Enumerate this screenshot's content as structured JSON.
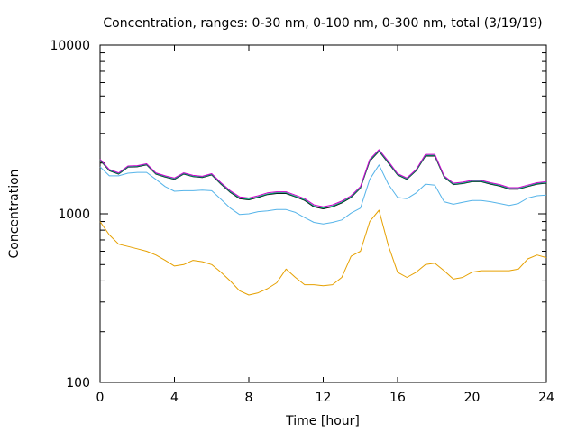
{
  "chart_data": {
    "type": "line",
    "title": "Concentration, ranges: 0-30 nm, 0-100 nm, 0-300 nm, total (3/19/19)",
    "xlabel": "Time [hour]",
    "ylabel": "Concentration",
    "xlim": [
      0,
      24
    ],
    "ylim": [
      100,
      10000
    ],
    "yscale": "log",
    "grid": false,
    "legend": "none",
    "x_ticks": [
      0,
      4,
      8,
      12,
      16,
      20,
      24
    ],
    "x_tick_labels": [
      "0",
      "4",
      "8",
      "12",
      "16",
      "20",
      "24"
    ],
    "y_ticks": [
      100,
      1000,
      10000
    ],
    "y_tick_labels": [
      "100",
      "1000",
      "10000"
    ],
    "x": [
      0,
      0.5,
      1,
      1.5,
      2,
      2.5,
      3,
      3.5,
      4,
      4.5,
      5,
      5.5,
      6,
      6.5,
      7,
      7.5,
      8,
      8.5,
      9,
      9.5,
      10,
      10.5,
      11,
      11.5,
      12,
      12.5,
      13,
      13.5,
      14,
      14.5,
      15,
      15.5,
      16,
      16.5,
      17,
      17.5,
      18,
      18.5,
      19,
      19.5,
      20,
      20.5,
      21,
      21.5,
      22,
      22.5,
      23,
      23.5,
      24
    ],
    "series": [
      {
        "color": "#e6a000",
        "values": [
          900,
          750,
          660,
          640,
          620,
          600,
          570,
          530,
          490,
          500,
          530,
          520,
          500,
          450,
          400,
          350,
          330,
          340,
          360,
          390,
          470,
          420,
          380,
          380,
          375,
          380,
          420,
          560,
          600,
          900,
          1050,
          650,
          450,
          420,
          450,
          500,
          510,
          460,
          410,
          420,
          450,
          460,
          460,
          460,
          460,
          470,
          540,
          570,
          550
        ]
      },
      {
        "color": "#56b4e9",
        "values": [
          1900,
          1680,
          1680,
          1740,
          1760,
          1760,
          1600,
          1450,
          1360,
          1370,
          1370,
          1380,
          1370,
          1220,
          1080,
          990,
          1000,
          1030,
          1040,
          1060,
          1060,
          1020,
          950,
          890,
          870,
          890,
          920,
          1010,
          1080,
          1600,
          1950,
          1500,
          1250,
          1230,
          1330,
          1500,
          1480,
          1180,
          1140,
          1170,
          1200,
          1200,
          1180,
          1150,
          1120,
          1150,
          1240,
          1280,
          1290
        ]
      },
      {
        "color": "#000000",
        "values": [
          2080,
          1800,
          1720,
          1890,
          1900,
          1950,
          1720,
          1650,
          1600,
          1720,
          1660,
          1640,
          1700,
          1500,
          1340,
          1230,
          1210,
          1250,
          1300,
          1320,
          1320,
          1260,
          1200,
          1100,
          1070,
          1100,
          1160,
          1250,
          1420,
          2050,
          2350,
          2000,
          1700,
          1600,
          1800,
          2200,
          2200,
          1650,
          1490,
          1510,
          1550,
          1550,
          1500,
          1460,
          1400,
          1400,
          1450,
          1500,
          1520
        ]
      },
      {
        "color": "#009e73",
        "values": [
          2090,
          1810,
          1730,
          1900,
          1910,
          1960,
          1730,
          1660,
          1610,
          1730,
          1670,
          1650,
          1710,
          1510,
          1350,
          1240,
          1220,
          1260,
          1310,
          1330,
          1330,
          1270,
          1210,
          1110,
          1080,
          1110,
          1170,
          1260,
          1430,
          2070,
          2370,
          2020,
          1710,
          1610,
          1810,
          2220,
          2220,
          1660,
          1500,
          1520,
          1560,
          1560,
          1510,
          1470,
          1410,
          1410,
          1460,
          1510,
          1530
        ]
      },
      {
        "color": "#cc00cc",
        "values": [
          2110,
          1830,
          1750,
          1920,
          1930,
          1980,
          1750,
          1680,
          1630,
          1750,
          1690,
          1670,
          1730,
          1530,
          1370,
          1260,
          1240,
          1280,
          1330,
          1350,
          1350,
          1290,
          1230,
          1130,
          1100,
          1130,
          1190,
          1280,
          1450,
          2100,
          2400,
          2050,
          1730,
          1630,
          1830,
          2250,
          2250,
          1680,
          1520,
          1540,
          1580,
          1580,
          1530,
          1490,
          1430,
          1430,
          1480,
          1530,
          1550
        ]
      }
    ]
  }
}
